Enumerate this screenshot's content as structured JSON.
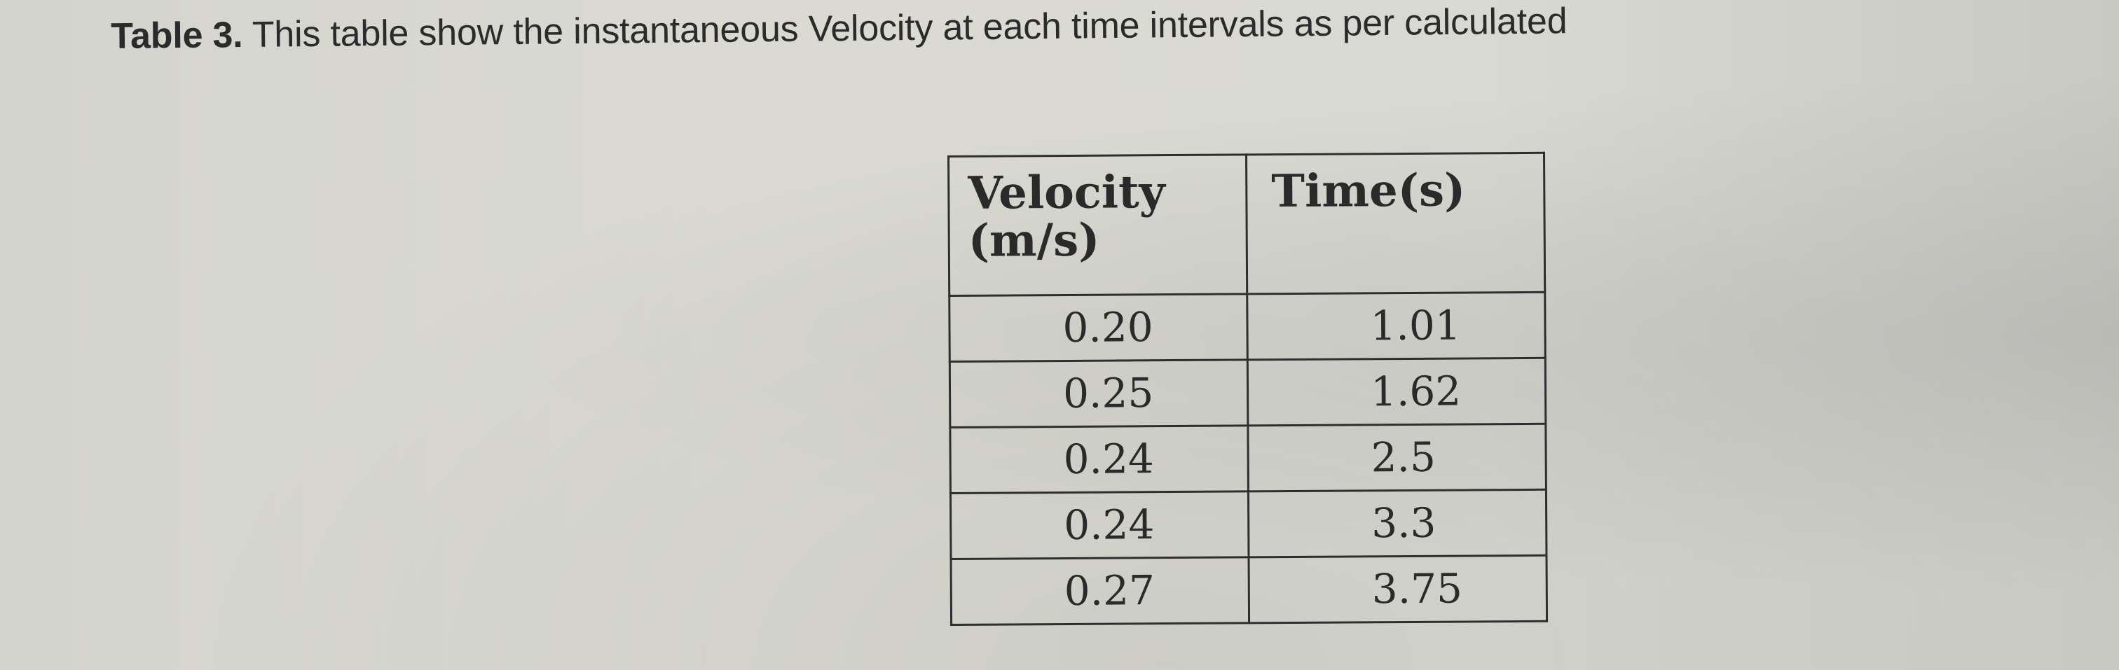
{
  "caption": {
    "label": "Table 3.",
    "text": " This table show the instantaneous Velocity at each time intervals as per calculated"
  },
  "table": {
    "headers": [
      "Velocity (m/s)",
      "Time(s)"
    ],
    "rows": [
      {
        "velocity": "0.20",
        "time": "1.01"
      },
      {
        "velocity": "0.25",
        "time": "1.62"
      },
      {
        "velocity": "0.24",
        "time": "2.5"
      },
      {
        "velocity": "0.24",
        "time": "3.3"
      },
      {
        "velocity": "0.27",
        "time": "3.75"
      }
    ]
  }
}
